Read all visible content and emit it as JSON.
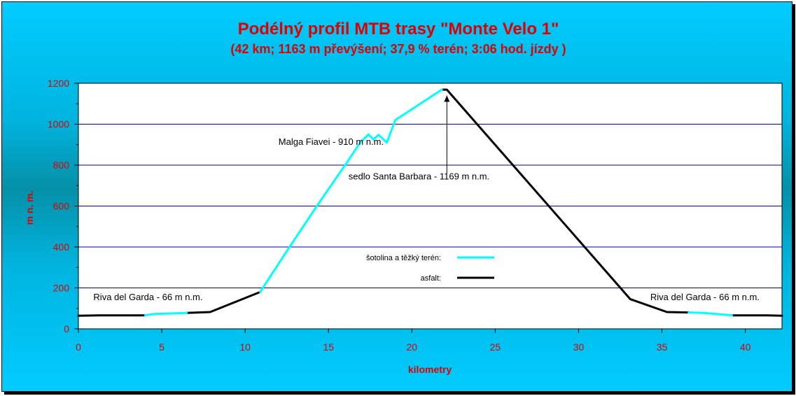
{
  "chart_data": {
    "type": "line",
    "title": "Podélný profil MTB trasy \"Monte Velo 1\"",
    "subtitle": "(42 km; 1163 m převýšení; 37,9 % terén; 3:06 hod. jízdy )",
    "xlabel": "kilometry",
    "ylabel": "m n. m.",
    "xlim": [
      0,
      42.2
    ],
    "ylim": [
      0,
      1200
    ],
    "xticks": [
      0,
      5,
      10,
      15,
      20,
      25,
      30,
      35,
      40
    ],
    "yticks": [
      0,
      200,
      400,
      600,
      800,
      1000,
      1200
    ],
    "grid": "horizontal",
    "legend_position": "center-right",
    "series": [
      {
        "name": "šotolina a těžký terén:",
        "color": "#00ffff",
        "segments": [
          [
            [
              4.0,
              66
            ],
            [
              4.5,
              72
            ],
            [
              6.5,
              78
            ]
          ],
          [
            [
              10.9,
              180
            ],
            [
              12.5,
              380
            ],
            [
              14.3,
              600
            ],
            [
              16.0,
              800
            ],
            [
              16.9,
              910
            ],
            [
              17.4,
              950
            ],
            [
              17.7,
              925
            ],
            [
              18.0,
              948
            ],
            [
              18.5,
              910
            ],
            [
              19.0,
              1020
            ],
            [
              21.8,
              1169
            ]
          ],
          [
            [
              36.6,
              80
            ],
            [
              37.5,
              78
            ],
            [
              39.2,
              66
            ]
          ]
        ]
      },
      {
        "name": "asfalt:",
        "color": "#000000",
        "segments": [
          [
            [
              0,
              64
            ],
            [
              1.2,
              66
            ],
            [
              4.0,
              66
            ]
          ],
          [
            [
              6.5,
              78
            ],
            [
              7.9,
              82
            ],
            [
              10.9,
              180
            ]
          ],
          [
            [
              21.8,
              1169
            ],
            [
              22.1,
              1169
            ],
            [
              33.1,
              145
            ],
            [
              35.3,
              82
            ],
            [
              36.6,
              80
            ]
          ],
          [
            [
              39.2,
              66
            ],
            [
              41.3,
              66
            ],
            [
              42.2,
              64
            ]
          ]
        ]
      }
    ],
    "annotations": [
      {
        "text": "Malga Fiavei - 910 m n.m.",
        "x": 12.0,
        "y": 900
      },
      {
        "text": "sedlo Santa Barbara - 1169 m n.m.",
        "x": 16.2,
        "y": 730
      },
      {
        "text": "Riva del Garda - 66 m n.m.",
        "x": 0.9,
        "y": 140
      },
      {
        "text": "Riva del Garda - 66 m n.m.",
        "x": 34.3,
        "y": 140
      }
    ],
    "arrow": {
      "from": [
        22.1,
        760
      ],
      "to": [
        22.1,
        1140
      ]
    }
  }
}
